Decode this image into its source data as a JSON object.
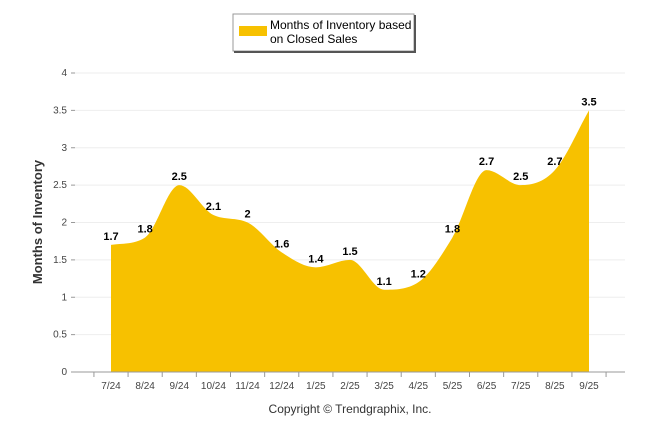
{
  "chart_data": {
    "type": "area",
    "title": "",
    "xlabel": "",
    "ylabel": "Months of Inventory",
    "ylim": [
      0,
      4
    ],
    "yticks": [
      "0",
      "0.5",
      "1",
      "1.5",
      "2",
      "2.5",
      "3",
      "3.5",
      "4"
    ],
    "categories": [
      "7/24",
      "8/24",
      "9/24",
      "10/24",
      "11/24",
      "12/24",
      "1/25",
      "2/25",
      "3/25",
      "4/25",
      "5/25",
      "6/25",
      "7/25",
      "8/25",
      "9/25"
    ],
    "series": [
      {
        "name": "Months of Inventory based on Closed Sales",
        "values": [
          1.7,
          1.8,
          2.5,
          2.1,
          2,
          1.6,
          1.4,
          1.5,
          1.1,
          1.2,
          1.8,
          2.7,
          2.5,
          2.7,
          3.5
        ],
        "labels": [
          "1.7",
          "1.8",
          "2.5",
          "2.1",
          "2",
          "1.6",
          "1.4",
          "1.5",
          "1.1",
          "1.2",
          "1.8",
          "2.7",
          "2.5",
          "2.7",
          "3.5"
        ],
        "color": "#f7c100"
      }
    ],
    "legend": {
      "position": "top",
      "line1": "Months of Inventory based",
      "line2": "on Closed Sales"
    },
    "grid": true,
    "copyright": "Copyright © Trendgraphix, Inc."
  },
  "colors": {
    "area": "#f7c100",
    "grid": "#eeeeee",
    "axis": "#999999"
  }
}
